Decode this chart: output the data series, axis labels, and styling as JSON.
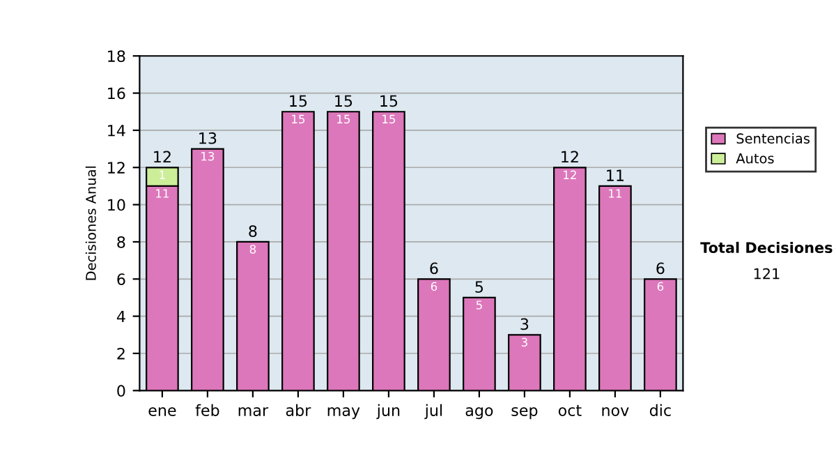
{
  "chart_data": {
    "type": "bar",
    "stacked": true,
    "ylabel": "Decisiones Anual",
    "categories": [
      "ene",
      "feb",
      "mar",
      "abr",
      "may",
      "jun",
      "jul",
      "ago",
      "sep",
      "oct",
      "nov",
      "dic"
    ],
    "series": [
      {
        "name": "Sentencias",
        "color": "#dd77bb",
        "values": [
          11,
          13,
          8,
          15,
          15,
          15,
          6,
          5,
          3,
          12,
          11,
          6
        ],
        "value_labels": [
          "11",
          "13",
          "8",
          "15",
          "15",
          "15",
          "6",
          "5",
          "3",
          "12",
          "11",
          "6"
        ]
      },
      {
        "name": "Autos",
        "color": "#ccee99",
        "values": [
          1,
          null,
          null,
          null,
          null,
          null,
          null,
          null,
          null,
          null,
          null,
          null
        ],
        "value_labels": [
          "1",
          null,
          null,
          null,
          null,
          null,
          null,
          null,
          null,
          null,
          null,
          null
        ]
      }
    ],
    "totals": [
      "12",
      "13",
      "8",
      "15",
      "15",
      "15",
      "6",
      "5",
      "3",
      "12",
      "11",
      "6"
    ],
    "ylim": [
      0,
      18
    ],
    "yticks": [
      0,
      2,
      4,
      6,
      8,
      10,
      12,
      14,
      16,
      18
    ],
    "grid": "y",
    "legend": "right",
    "annotations": [
      "Total Decisiones",
      "121"
    ]
  }
}
